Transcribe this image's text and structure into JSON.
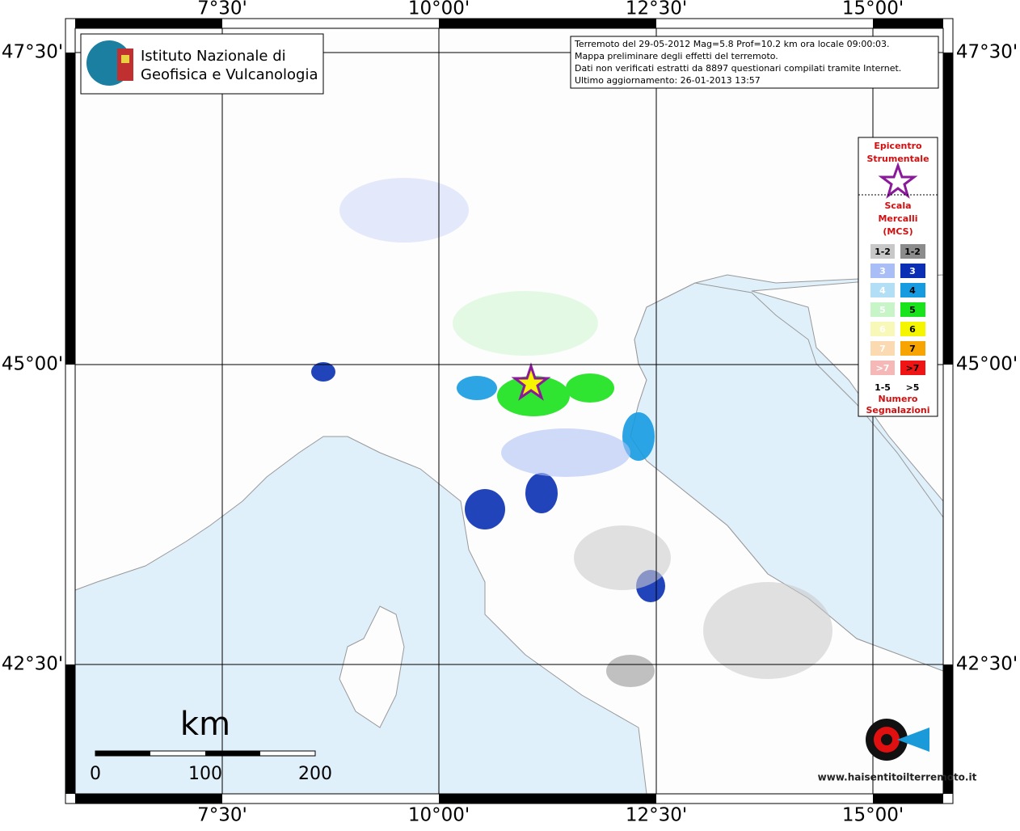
{
  "map": {
    "lon_labels": [
      "7°30'",
      "10°00'",
      "12°30'",
      "15°00'"
    ],
    "lat_labels": [
      "47°30'",
      "45°00'",
      "42°30'"
    ],
    "logo": {
      "line1": "Istituto Nazionale di",
      "line2": "Geofisica e Vulcanologia"
    },
    "info": [
      "Terremoto del 29-05-2012 Mag=5.8 Prof=10.2 km ora locale 09:00:03.",
      "Mappa preliminare degli effetti del terremoto.",
      "Dati non verificati estratti da 8897 questionari compilati tramite Internet.",
      "Ultimo aggiornamento: 26-01-2013 13:57"
    ],
    "legend": {
      "epicenter": [
        "Epicentro",
        "Strumentale"
      ],
      "scale": [
        "Scala",
        "Mercalli",
        "(MCS)"
      ],
      "rows": [
        {
          "left": "1-2",
          "right": "1-2",
          "left_color": "#c8c8c8",
          "right_color": "#8c8c8c"
        },
        {
          "left": "3",
          "right": "3",
          "left_color": "#a9bdf7",
          "right_color": "#0a2fb4"
        },
        {
          "left": "4",
          "right": "4",
          "left_color": "#b3dff6",
          "right_color": "#169be1"
        },
        {
          "left": "5",
          "right": "5",
          "left_color": "#c7f5c8",
          "right_color": "#19e31a"
        },
        {
          "left": "6",
          "right": "6",
          "left_color": "#f8f8b8",
          "right_color": "#f5f500"
        },
        {
          "left": "7",
          "right": "7",
          "left_color": "#fbd9b1",
          "right_color": "#f8a400"
        },
        {
          "left": ">7",
          "right": ">7",
          "left_color": "#f6b7b7",
          "right_color": "#f01414"
        }
      ],
      "count_left": "1-5",
      "count_right": ">5",
      "count_title": [
        "Numero",
        "Segnalazioni"
      ]
    },
    "scale_bar": {
      "unit": "km",
      "labels": [
        "0",
        "100",
        "200"
      ]
    },
    "watermark": "www.haisentitoilterremoto.it"
  }
}
